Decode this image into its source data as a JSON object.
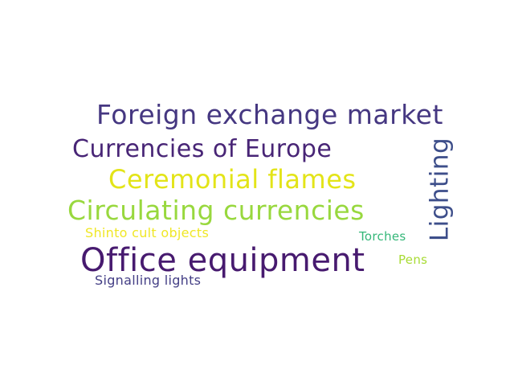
{
  "wordcloud": {
    "words": [
      {
        "text": "Foreign exchange market",
        "color": "#453781"
      },
      {
        "text": "Currencies of Europe",
        "color": "#482576"
      },
      {
        "text": "Ceremonial flames",
        "color": "#e3e418"
      },
      {
        "text": "Circulating currencies",
        "color": "#98d83e"
      },
      {
        "text": "Shinto cult objects",
        "color": "#f0e726"
      },
      {
        "text": "Office equipment",
        "color": "#471a6f"
      },
      {
        "text": "Signalling lights",
        "color": "#433e85"
      },
      {
        "text": "Torches",
        "color": "#35b779"
      },
      {
        "text": "Pens",
        "color": "#a8db34"
      },
      {
        "text": "Lighting",
        "color": "#3d4e8a"
      }
    ]
  }
}
